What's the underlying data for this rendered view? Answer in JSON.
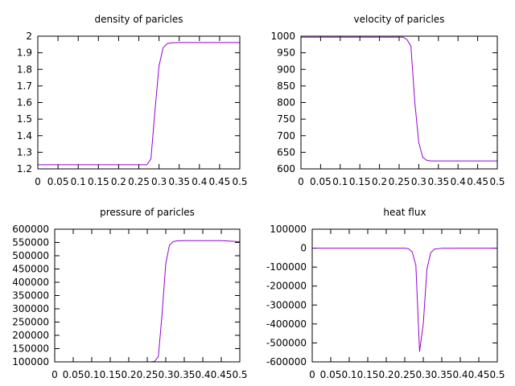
{
  "colors": {
    "series": "#9400d3",
    "axis": "#000000",
    "background": "#ffffff"
  },
  "chart_data": [
    {
      "type": "line",
      "title": "density of paricles",
      "xlabel": "",
      "ylabel": "",
      "xlim": [
        0,
        0.5
      ],
      "ylim": [
        1.2,
        2.0
      ],
      "grid": false,
      "xticks": [
        "0",
        "0.05",
        "0.1",
        "0.15",
        "0.2",
        "0.25",
        "0.3",
        "0.35",
        "0.4",
        "0.45",
        "0.5"
      ],
      "yticks": [
        "1.2",
        "1.3",
        "1.4",
        "1.5",
        "1.6",
        "1.7",
        "1.8",
        "1.9",
        "2"
      ],
      "series": [
        {
          "x": [
            0,
            0.05,
            0.1,
            0.15,
            0.2,
            0.25,
            0.27,
            0.28,
            0.29,
            0.3,
            0.31,
            0.32,
            0.33,
            0.35,
            0.4,
            0.45,
            0.5
          ],
          "y": [
            1.225,
            1.225,
            1.225,
            1.225,
            1.225,
            1.225,
            1.225,
            1.26,
            1.55,
            1.82,
            1.93,
            1.955,
            1.96,
            1.962,
            1.962,
            1.962,
            1.962
          ]
        }
      ]
    },
    {
      "type": "line",
      "title": "velocity of paricles",
      "xlabel": "",
      "ylabel": "",
      "xlim": [
        0,
        0.5
      ],
      "ylim": [
        600,
        1000
      ],
      "grid": false,
      "xticks": [
        "0",
        "0.05",
        "0.1",
        "0.15",
        "0.2",
        "0.25",
        "0.3",
        "0.35",
        "0.4",
        "0.45",
        "0.5"
      ],
      "yticks": [
        "600",
        "650",
        "700",
        "750",
        "800",
        "850",
        "900",
        "950",
        "1000"
      ],
      "series": [
        {
          "x": [
            0,
            0.05,
            0.1,
            0.15,
            0.2,
            0.25,
            0.26,
            0.27,
            0.28,
            0.29,
            0.3,
            0.31,
            0.32,
            0.33,
            0.35,
            0.4,
            0.45,
            0.5
          ],
          "y": [
            997,
            997,
            997,
            997,
            997,
            997,
            997,
            990,
            970,
            800,
            680,
            635,
            626,
            624,
            624,
            624,
            624,
            624
          ]
        }
      ]
    },
    {
      "type": "line",
      "title": "pressure of paricles",
      "xlabel": "",
      "ylabel": "",
      "xlim": [
        0,
        0.5
      ],
      "ylim": [
        100000,
        600000
      ],
      "grid": false,
      "xticks": [
        "0",
        "0.05",
        "0.1",
        "0.15",
        "0.2",
        "0.25",
        "0.3",
        "0.35",
        "0.4",
        "0.45",
        "0.5"
      ],
      "yticks": [
        "100000",
        "150000",
        "200000",
        "250000",
        "300000",
        "350000",
        "400000",
        "450000",
        "500000",
        "550000",
        "600000"
      ],
      "series": [
        {
          "x": [
            0,
            0.05,
            0.1,
            0.15,
            0.2,
            0.25,
            0.26,
            0.27,
            0.28,
            0.29,
            0.3,
            0.31,
            0.32,
            0.33,
            0.35,
            0.4,
            0.45,
            0.5
          ],
          "y": [
            100000,
            100000,
            100000,
            100000,
            100000,
            100000,
            100000,
            102000,
            120000,
            280000,
            470000,
            540000,
            553000,
            556000,
            557000,
            557000,
            557000,
            553000
          ]
        }
      ]
    },
    {
      "type": "line",
      "title": "heat flux",
      "xlabel": "",
      "ylabel": "",
      "xlim": [
        0,
        0.5
      ],
      "ylim": [
        -600000,
        100000
      ],
      "grid": false,
      "xticks": [
        "0",
        "0.05",
        "0.1",
        "0.15",
        "0.2",
        "0.25",
        "0.3",
        "0.35",
        "0.4",
        "0.45",
        "0.5"
      ],
      "yticks": [
        "-600000",
        "-500000",
        "-400000",
        "-300000",
        "-200000",
        "-100000",
        "0",
        "100000"
      ],
      "series": [
        {
          "x": [
            0,
            0.05,
            0.1,
            0.15,
            0.2,
            0.25,
            0.26,
            0.27,
            0.28,
            0.29,
            0.3,
            0.31,
            0.32,
            0.33,
            0.35,
            0.4,
            0.45,
            0.5
          ],
          "y": [
            0,
            0,
            0,
            0,
            0,
            0,
            -3000,
            -20000,
            -90000,
            -545000,
            -400000,
            -110000,
            -25000,
            -5000,
            -1000,
            0,
            0,
            0
          ]
        }
      ]
    }
  ]
}
